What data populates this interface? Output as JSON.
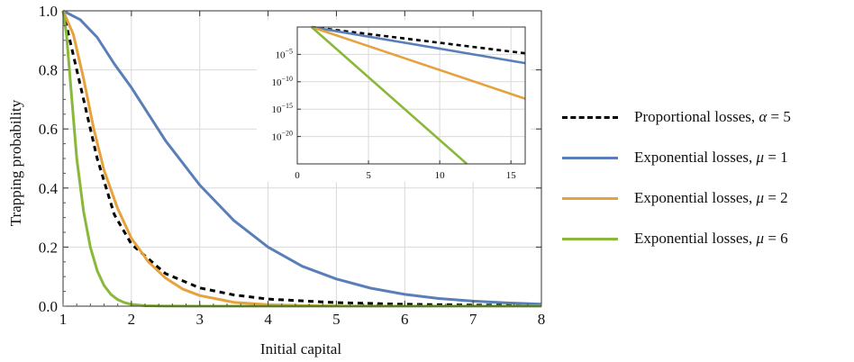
{
  "chart_data": [
    {
      "type": "line",
      "title": "",
      "xlabel": "Initial capital",
      "ylabel": "Trapping probability",
      "xlim": [
        1,
        8
      ],
      "ylim": [
        0,
        1
      ],
      "xticks": [
        "1",
        "2",
        "3",
        "4",
        "5",
        "6",
        "7",
        "8"
      ],
      "yticks": [
        "0.0",
        "0.2",
        "0.4",
        "0.6",
        "0.8",
        "1.0"
      ],
      "grid": true,
      "legend": "right",
      "series": [
        {
          "name": "Proportional losses, α = 5",
          "label_prefix": "Proportional losses, ",
          "param": "α",
          "param_value": "= 5",
          "color": "#000000",
          "dashed": true,
          "x": [
            1,
            1.25,
            1.5,
            1.75,
            2,
            2.5,
            3,
            3.5,
            4,
            5,
            6,
            7,
            8
          ],
          "y": [
            1,
            0.75,
            0.5,
            0.31,
            0.21,
            0.11,
            0.062,
            0.038,
            0.024,
            0.012,
            0.0064,
            0.0037,
            0.0023
          ]
        },
        {
          "name": "Exponential losses, μ = 1",
          "label_prefix": "Exponential losses, ",
          "param": "μ",
          "param_value": "= 1",
          "color": "#5a7fb8",
          "dashed": false,
          "x": [
            1,
            1.25,
            1.5,
            1.75,
            2,
            2.5,
            3,
            3.5,
            4,
            4.5,
            5,
            5.5,
            6,
            6.5,
            7,
            7.5,
            8
          ],
          "y": [
            1,
            0.97,
            0.91,
            0.82,
            0.74,
            0.56,
            0.41,
            0.29,
            0.2,
            0.135,
            0.092,
            0.061,
            0.04,
            0.026,
            0.017,
            0.011,
            0.007
          ]
        },
        {
          "name": "Exponential losses, μ = 2",
          "label_prefix": "Exponential losses, ",
          "param": "μ",
          "param_value": "= 2",
          "color": "#e6a23c",
          "dashed": false,
          "x": [
            1,
            1.15,
            1.3,
            1.45,
            1.6,
            1.8,
            2,
            2.25,
            2.5,
            2.75,
            3,
            3.5,
            4,
            4.5,
            5,
            6,
            7,
            8
          ],
          "y": [
            1,
            0.92,
            0.77,
            0.6,
            0.46,
            0.33,
            0.23,
            0.15,
            0.095,
            0.058,
            0.036,
            0.013,
            0.005,
            0.0018,
            0.0006,
            0.0001,
            0,
            0
          ]
        },
        {
          "name": "Exponential losses, μ = 6",
          "label_prefix": "Exponential losses, ",
          "param": "μ",
          "param_value": "= 6",
          "color": "#8ab83a",
          "dashed": false,
          "x": [
            1,
            1.05,
            1.1,
            1.15,
            1.2,
            1.3,
            1.4,
            1.5,
            1.6,
            1.7,
            1.8,
            1.9,
            2,
            2.2,
            2.5,
            3,
            4,
            8
          ],
          "y": [
            1,
            0.92,
            0.78,
            0.64,
            0.5,
            0.32,
            0.2,
            0.12,
            0.07,
            0.04,
            0.022,
            0.012,
            0.006,
            0.0015,
            0.0002,
            0,
            0,
            0
          ]
        }
      ]
    },
    {
      "type": "line",
      "title": "",
      "xlabel": "",
      "ylabel": "",
      "xlim": [
        0,
        16
      ],
      "ylog": true,
      "ylim_exponent": [
        -25,
        0
      ],
      "xticks": [
        "0",
        "5",
        "10",
        "15"
      ],
      "yticks": [
        {
          "exp": -5,
          "label": "10",
          "sup": "−5"
        },
        {
          "exp": -10,
          "label": "10",
          "sup": "−10"
        },
        {
          "exp": -15,
          "label": "10",
          "sup": "−15"
        },
        {
          "exp": -20,
          "label": "10",
          "sup": "−20"
        }
      ],
      "grid": true,
      "series": [
        {
          "name": "Proportional losses, α = 5",
          "color": "#000000",
          "dashed": true,
          "x": [
            1,
            16
          ],
          "log10_y": [
            0,
            -4.8
          ]
        },
        {
          "name": "Exponential losses, μ = 1",
          "color": "#5a7fb8",
          "dashed": false,
          "x": [
            1,
            16
          ],
          "log10_y": [
            0,
            -6.6
          ]
        },
        {
          "name": "Exponential losses, μ = 2",
          "color": "#e6a23c",
          "dashed": false,
          "x": [
            1,
            16
          ],
          "log10_y": [
            0,
            -13.1
          ]
        },
        {
          "name": "Exponential losses, μ = 6",
          "color": "#8ab83a",
          "dashed": false,
          "x": [
            1,
            11.9
          ],
          "log10_y": [
            0,
            -25
          ]
        }
      ]
    }
  ]
}
